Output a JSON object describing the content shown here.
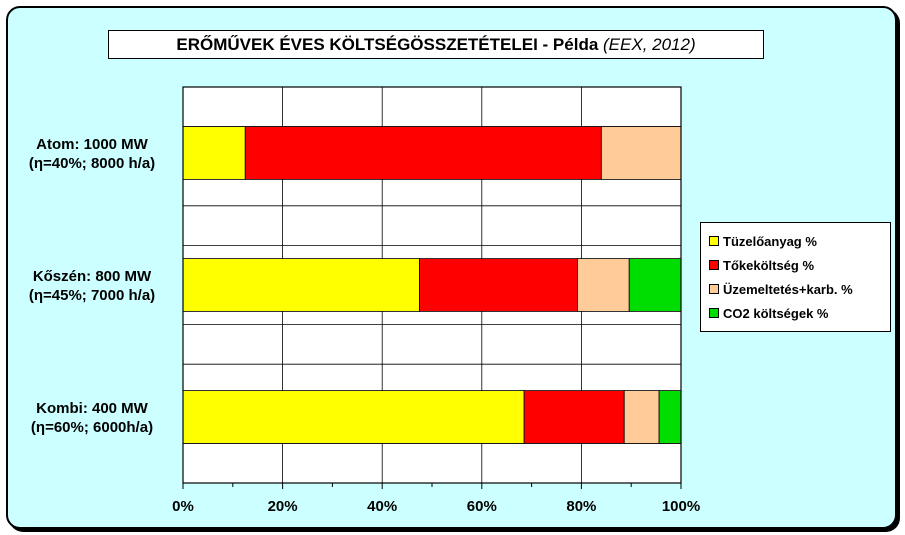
{
  "chart_data": {
    "type": "bar",
    "orientation": "horizontal",
    "stacked": true,
    "title": "ERŐMŰVEK ÉVES KÖLTSÉGÖSSZETÉTELEI - Példa",
    "title_source": "(EEX, 2012)",
    "categories": [
      [
        "Atom: 1000 MW",
        "(η=40%; 8000 h/a)"
      ],
      [
        "Kőszén: 800 MW",
        "(η=45%; 7000 h/a)"
      ],
      [
        "Kombi: 400 MW",
        "(η=60%; 6000h/a)"
      ]
    ],
    "series": [
      {
        "name": "Tüzelőanyag %",
        "color": "#ffff00",
        "values": [
          12.5,
          47.5,
          68.5
        ]
      },
      {
        "name": "Tőkeköltség %",
        "color": "#ff0000",
        "values": [
          71.5,
          31.7,
          20.1
        ]
      },
      {
        "name": "Üzemeltetés+karb. %",
        "color": "#ffcc99",
        "values": [
          16.0,
          10.4,
          7.0
        ]
      },
      {
        "name": "CO2 költségek %",
        "color": "#00dd00",
        "values": [
          0.0,
          10.4,
          4.4
        ]
      }
    ],
    "xlim": [
      0,
      100
    ],
    "xticks": [
      "0%",
      "20%",
      "40%",
      "60%",
      "80%",
      "100%"
    ],
    "grid": true,
    "legend_position": "right"
  },
  "colors": {
    "chart_background": "#ccffff",
    "plot_background": "#ffffff"
  }
}
